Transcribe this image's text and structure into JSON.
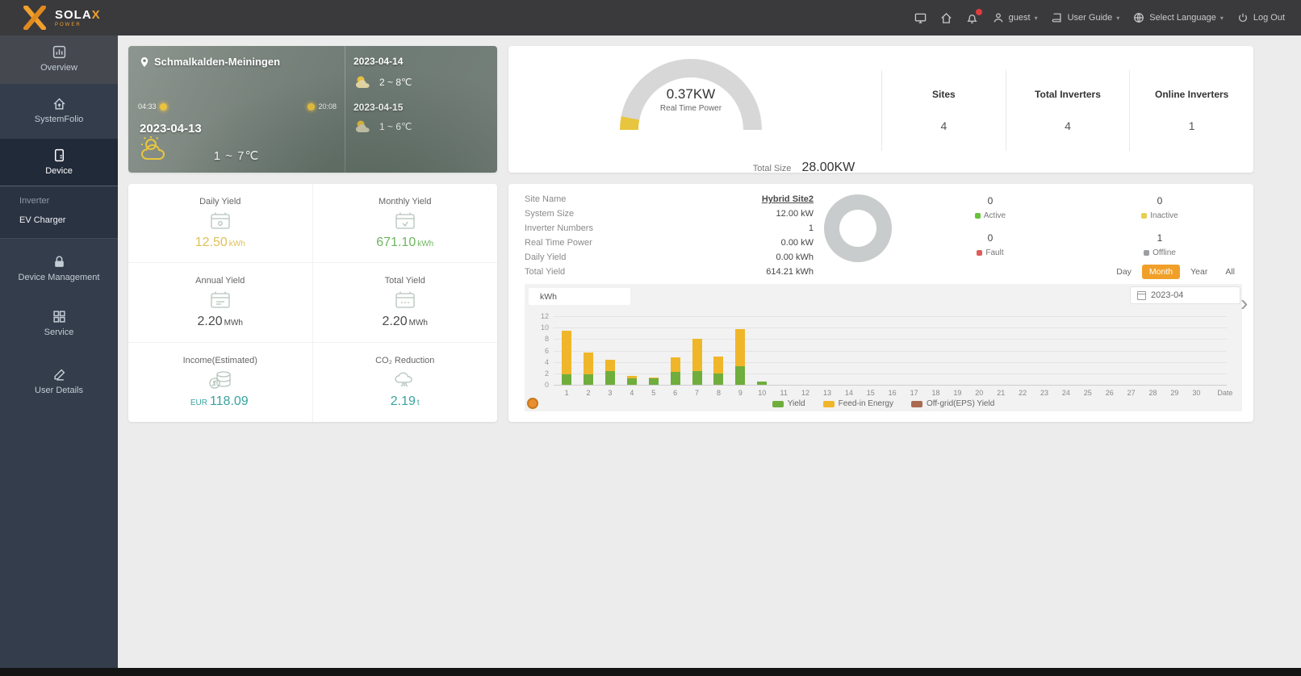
{
  "navbar": {
    "brand": "SOLA",
    "brand_x": "X",
    "brand_sub": "POWER",
    "user": "guest",
    "user_guide": "User Guide",
    "select_language": "Select Language",
    "logout": "Log Out"
  },
  "glyphs": {
    "caret": "▾",
    "chevron": "›"
  },
  "sidebar": {
    "items": [
      {
        "label": "Overview"
      },
      {
        "label": "SystemFolio"
      },
      {
        "label": "Device"
      },
      {
        "label": "Inverter"
      },
      {
        "label": "EV Charger"
      },
      {
        "label": "Device Management"
      },
      {
        "label": "Service"
      },
      {
        "label": "User Details"
      }
    ]
  },
  "weather": {
    "location": "Schmalkalden-Meiningen",
    "sunrise": "04:33",
    "sunset": "20:08",
    "today_date": "2023-04-13",
    "today_temp": "1 ~ 7℃",
    "forecast": [
      {
        "date": "2023-04-14",
        "temp": "2 ~ 8℃"
      },
      {
        "date": "2023-04-15",
        "temp": "1 ~ 6℃"
      }
    ]
  },
  "overview": {
    "gauge_value": "0.37KW",
    "gauge_label": "Real Time Power",
    "total_label": "Total Size",
    "total_value": "28.00KW",
    "stats": [
      {
        "label": "Sites",
        "value": "4"
      },
      {
        "label": "Total Inverters",
        "value": "4"
      },
      {
        "label": "Online Inverters",
        "value": "1"
      }
    ]
  },
  "yields": {
    "tiles": [
      {
        "label": "Daily Yield",
        "value": "12.50",
        "unit": "kWh",
        "color": "#dfc155"
      },
      {
        "label": "Monthly Yield",
        "value": "671.10",
        "unit": "kWh",
        "color": "#6db55f"
      },
      {
        "label": "Annual Yield",
        "value": "2.20",
        "unit": "MWh",
        "color": "#4a4a4a"
      },
      {
        "label": "Total Yield",
        "value": "2.20",
        "unit": "MWh",
        "color": "#4a4a4a"
      },
      {
        "label": "Income(Estimated)",
        "prefix": "EUR",
        "value": "118.09",
        "unit": "",
        "color": "#39a3a0"
      },
      {
        "label": "CO₂ Reduction",
        "value": "2.19",
        "unit": "t",
        "color": "#39a3a0"
      }
    ]
  },
  "site": {
    "rows": [
      {
        "label": "Site Name",
        "value": "Hybrid Site2"
      },
      {
        "label": "System Size",
        "value": "12.00 kW"
      },
      {
        "label": "Inverter Numbers",
        "value": "1"
      },
      {
        "label": "Real Time Power",
        "value": "0.00 kW"
      },
      {
        "label": "Daily Yield",
        "value": "0.00 kWh"
      },
      {
        "label": "Total Yield",
        "value": "614.21 kWh"
      }
    ],
    "status": [
      {
        "label": "Active",
        "value": "0",
        "color": "#67c23a"
      },
      {
        "label": "Inactive",
        "value": "0",
        "color": "#e6cf4e"
      },
      {
        "label": "Fault",
        "value": "0",
        "color": "#e05c5c"
      },
      {
        "label": "Offline",
        "value": "1",
        "color": "#9b9ea3"
      }
    ],
    "tabs": [
      "Day",
      "Month",
      "Year",
      "All"
    ],
    "active_tab": "Month",
    "date": "2023-04",
    "unit_select": "kWh"
  },
  "chart_data": {
    "type": "bar",
    "stacked": true,
    "title": "Monthly yield per day",
    "xlabel": "Date",
    "ylabel": "kWh",
    "x": [
      1,
      2,
      3,
      4,
      5,
      6,
      7,
      8,
      9,
      10,
      11,
      12,
      13,
      14,
      15,
      16,
      17,
      18,
      19,
      20,
      21,
      22,
      23,
      24,
      25,
      26,
      27,
      28,
      29,
      30
    ],
    "yticks": [
      0,
      2,
      4,
      6,
      8,
      10,
      12
    ],
    "ylim": [
      0,
      12
    ],
    "legend_position": "bottom",
    "series": [
      {
        "name": "Yield",
        "color": "#6fae3d",
        "values": [
          1.8,
          1.9,
          2.4,
          1.2,
          1.1,
          2.2,
          2.4,
          2.0,
          3.2,
          0.6,
          0,
          0,
          0,
          0,
          0,
          0,
          0,
          0,
          0,
          0,
          0,
          0,
          0,
          0,
          0,
          0,
          0,
          0,
          0,
          0
        ]
      },
      {
        "name": "Feed-in Energy",
        "color": "#f0b62a",
        "values": [
          7.6,
          3.7,
          2.0,
          0.4,
          0.2,
          2.6,
          5.6,
          3.0,
          6.6,
          0,
          0,
          0,
          0,
          0,
          0,
          0,
          0,
          0,
          0,
          0,
          0,
          0,
          0,
          0,
          0,
          0,
          0,
          0,
          0,
          0
        ]
      },
      {
        "name": "Off-grid(EPS) Yield",
        "color": "#a96a50",
        "values": [
          0,
          0,
          0,
          0,
          0,
          0,
          0,
          0,
          0,
          0,
          0,
          0,
          0,
          0,
          0,
          0,
          0,
          0,
          0,
          0,
          0,
          0,
          0,
          0,
          0,
          0,
          0,
          0,
          0,
          0
        ]
      }
    ]
  }
}
